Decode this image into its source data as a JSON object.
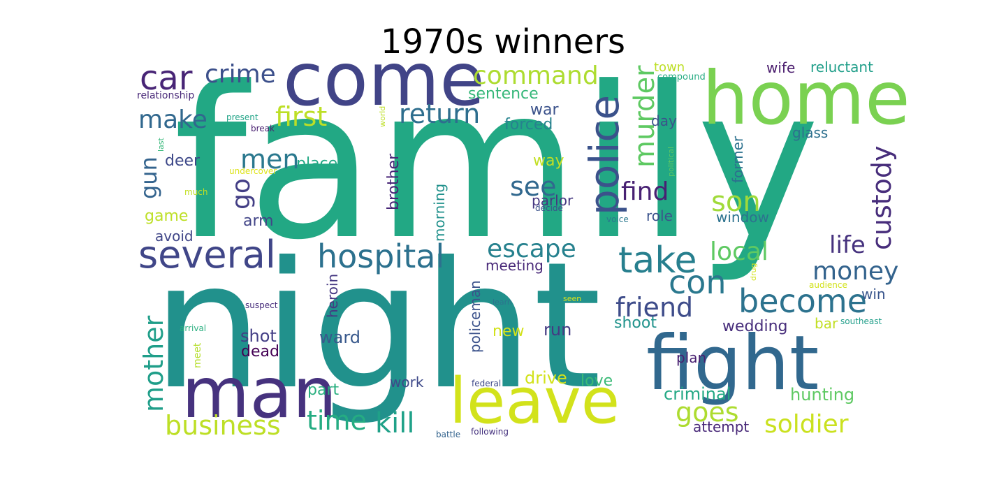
{
  "chart_data": {
    "type": "wordcloud",
    "title": "1970s winners",
    "palette": "viridis",
    "words": [
      {
        "text": "family",
        "weight": 100,
        "color": "#22a884"
      },
      {
        "text": "night",
        "weight": 95,
        "color": "#21918c"
      },
      {
        "text": "home",
        "weight": 40,
        "color": "#7ad151"
      },
      {
        "text": "come",
        "weight": 38,
        "color": "#414487"
      },
      {
        "text": "man",
        "weight": 38,
        "color": "#46327e"
      },
      {
        "text": "fight",
        "weight": 38,
        "color": "#31688e"
      },
      {
        "text": "leave",
        "weight": 33,
        "color": "#d2e21b"
      },
      {
        "text": "police",
        "weight": 26,
        "color": "#3b528b"
      },
      {
        "text": "several",
        "weight": 23,
        "color": "#404688"
      },
      {
        "text": "take",
        "weight": 22,
        "color": "#277f8e"
      },
      {
        "text": "become",
        "weight": 21,
        "color": "#2c728e"
      },
      {
        "text": "con",
        "weight": 20,
        "color": "#2a788e"
      },
      {
        "text": "car",
        "weight": 18,
        "color": "#482576"
      },
      {
        "text": "hospital",
        "weight": 18,
        "color": "#2c718e"
      },
      {
        "text": "custody",
        "weight": 16,
        "color": "#472d7b"
      },
      {
        "text": "murder",
        "weight": 16,
        "color": "#5ec962"
      },
      {
        "text": "mother",
        "weight": 16,
        "color": "#1f9e89"
      },
      {
        "text": "business",
        "weight": 16,
        "color": "#bddf26"
      },
      {
        "text": "kill",
        "weight": 16,
        "color": "#1fa188"
      },
      {
        "text": "time",
        "weight": 15,
        "color": "#25ac82"
      },
      {
        "text": "return",
        "weight": 15,
        "color": "#2e6e8e"
      },
      {
        "text": "escape",
        "weight": 14,
        "color": "#26818e"
      },
      {
        "text": "friend",
        "weight": 15,
        "color": "#3e4c8a"
      },
      {
        "text": "money",
        "weight": 14,
        "color": "#33638d"
      },
      {
        "text": "son",
        "weight": 15,
        "color": "#a0da39"
      },
      {
        "text": "goes",
        "weight": 14,
        "color": "#addc30"
      },
      {
        "text": "soldier",
        "weight": 14,
        "color": "#cae11f"
      },
      {
        "text": "crime",
        "weight": 14,
        "color": "#3c508b"
      },
      {
        "text": "command",
        "weight": 14,
        "color": "#addc30"
      },
      {
        "text": "first",
        "weight": 14,
        "color": "#bddf26"
      },
      {
        "text": "make",
        "weight": 13,
        "color": "#31688e"
      },
      {
        "text": "men",
        "weight": 14,
        "color": "#2a788e"
      },
      {
        "text": "go",
        "weight": 13,
        "color": "#433e85"
      },
      {
        "text": "see",
        "weight": 13,
        "color": "#31688e"
      },
      {
        "text": "find",
        "weight": 13,
        "color": "#482173"
      },
      {
        "text": "local",
        "weight": 13,
        "color": "#5ec962"
      },
      {
        "text": "life",
        "weight": 12,
        "color": "#46327e"
      },
      {
        "text": "gun",
        "weight": 11,
        "color": "#33638d"
      },
      {
        "text": "wedding",
        "weight": 9,
        "color": "#472d7b"
      },
      {
        "text": "hunting",
        "weight": 9,
        "color": "#5ec962"
      },
      {
        "text": "criminal",
        "weight": 9,
        "color": "#22a884"
      },
      {
        "text": "shot",
        "weight": 9,
        "color": "#433e85"
      },
      {
        "text": "dead",
        "weight": 9,
        "color": "#440154"
      },
      {
        "text": "drive",
        "weight": 9,
        "color": "#d2e21b"
      },
      {
        "text": "love",
        "weight": 9,
        "color": "#3aba76"
      },
      {
        "text": "part",
        "weight": 9,
        "color": "#29af7f"
      },
      {
        "text": "ward",
        "weight": 9,
        "color": "#38598c"
      },
      {
        "text": "shoot",
        "weight": 9,
        "color": "#20938c"
      },
      {
        "text": "run",
        "weight": 9,
        "color": "#443a83"
      },
      {
        "text": "work",
        "weight": 8,
        "color": "#3e4989"
      },
      {
        "text": "meeting",
        "weight": 8,
        "color": "#482878"
      },
      {
        "text": "war",
        "weight": 8,
        "color": "#3b528b"
      },
      {
        "text": "forced",
        "weight": 8,
        "color": "#26828e"
      },
      {
        "text": "sentence",
        "weight": 8,
        "color": "#35b779"
      },
      {
        "text": "deer",
        "weight": 8,
        "color": "#3e4989"
      },
      {
        "text": "place",
        "weight": 8,
        "color": "#22a884"
      },
      {
        "text": "way",
        "weight": 8,
        "color": "#c2df23"
      },
      {
        "text": "parlor",
        "weight": 8,
        "color": "#453781"
      },
      {
        "text": "arm",
        "weight": 8,
        "color": "#414487"
      },
      {
        "text": "game",
        "weight": 8,
        "color": "#bddf26"
      },
      {
        "text": "avoid",
        "weight": 8,
        "color": "#404688"
      },
      {
        "text": "role",
        "weight": 8,
        "color": "#3b528b"
      },
      {
        "text": "window",
        "weight": 8,
        "color": "#2c728e"
      },
      {
        "text": "former",
        "weight": 8,
        "color": "#2c718e"
      },
      {
        "text": "brother",
        "weight": 8,
        "color": "#482677"
      },
      {
        "text": "morning",
        "weight": 8,
        "color": "#21918c"
      },
      {
        "text": "heroin",
        "weight": 8,
        "color": "#453882"
      },
      {
        "text": "policeman",
        "weight": 8,
        "color": "#3b528b"
      },
      {
        "text": "new",
        "weight": 8,
        "color": "#d2e21b"
      },
      {
        "text": "attempt",
        "weight": 8,
        "color": "#482878"
      },
      {
        "text": "win",
        "weight": 8,
        "color": "#39558c"
      },
      {
        "text": "bar",
        "weight": 8,
        "color": "#c2df23"
      },
      {
        "text": "wife",
        "weight": 8,
        "color": "#481a6c"
      },
      {
        "text": "reluctant",
        "weight": 8,
        "color": "#1f9e89"
      },
      {
        "text": "town",
        "weight": 7,
        "color": "#bddf26"
      },
      {
        "text": "day",
        "weight": 7,
        "color": "#3b528b"
      },
      {
        "text": "glass",
        "weight": 7,
        "color": "#2d708e"
      },
      {
        "text": "plan",
        "weight": 7,
        "color": "#481f70"
      },
      {
        "text": "meet",
        "weight": 6,
        "color": "#b5de2b"
      },
      {
        "text": "compound",
        "weight": 5,
        "color": "#25ab82"
      },
      {
        "text": "relationship",
        "weight": 5,
        "color": "#482878"
      },
      {
        "text": "present",
        "weight": 4,
        "color": "#20a386"
      },
      {
        "text": "break",
        "weight": 4,
        "color": "#481f70"
      },
      {
        "text": "world",
        "weight": 4,
        "color": "#bddf26"
      },
      {
        "text": "last",
        "weight": 4,
        "color": "#35b779"
      },
      {
        "text": "undercover",
        "weight": 4,
        "color": "#dde318"
      },
      {
        "text": "much",
        "weight": 4,
        "color": "#c2df23"
      },
      {
        "text": "political",
        "weight": 4,
        "color": "#5ec962"
      },
      {
        "text": "decide",
        "weight": 4,
        "color": "#3b528b"
      },
      {
        "text": "voice",
        "weight": 4,
        "color": "#2a788e"
      },
      {
        "text": "suspect",
        "weight": 4,
        "color": "#472d7b"
      },
      {
        "text": "arrival",
        "weight": 4,
        "color": "#29af7f"
      },
      {
        "text": "learn",
        "weight": 4,
        "color": "#2c728e"
      },
      {
        "text": "seen",
        "weight": 4,
        "color": "#dde318"
      },
      {
        "text": "drug",
        "weight": 4,
        "color": "#d2e21b"
      },
      {
        "text": "audience",
        "weight": 4,
        "color": "#d2e21b"
      },
      {
        "text": "southeast",
        "weight": 4,
        "color": "#1f9e89"
      },
      {
        "text": "federal",
        "weight": 4,
        "color": "#3e4989"
      },
      {
        "text": "battle",
        "weight": 4,
        "color": "#33638d"
      },
      {
        "text": "following",
        "weight": 4,
        "color": "#46337f"
      }
    ]
  }
}
